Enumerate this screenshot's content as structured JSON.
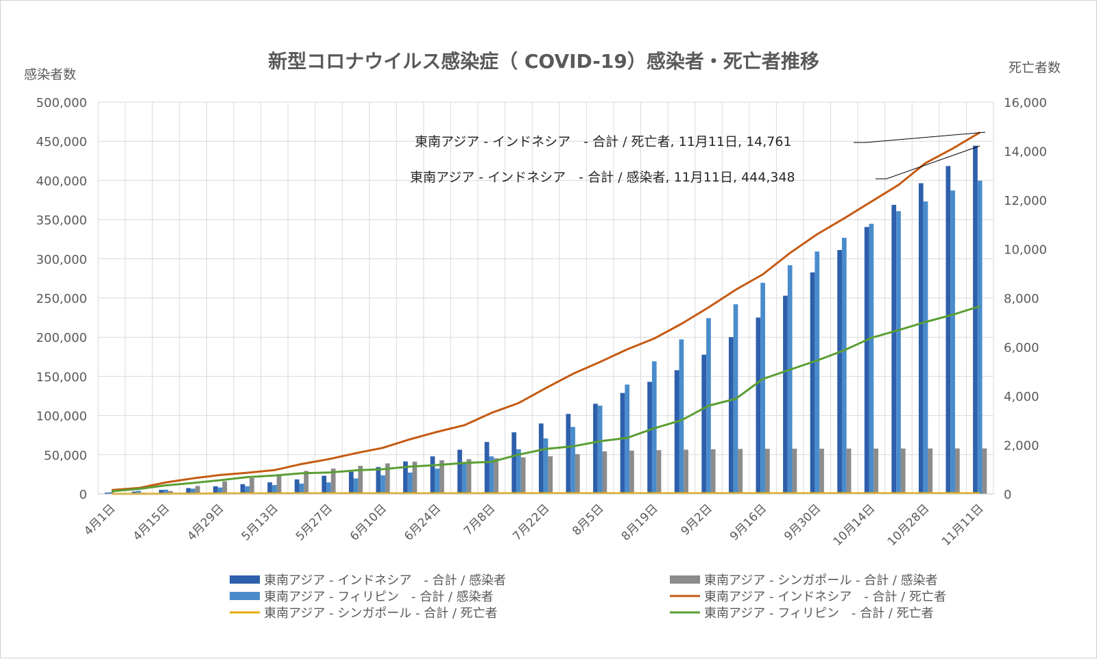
{
  "chart_data": {
    "type": "bar",
    "title": "新型コロナウイルス感染症（ COVID-19）感染者・死亡者推移",
    "ylabel": "感染者数",
    "y2label": "死亡者数",
    "ylim": [
      0,
      500000
    ],
    "y2lim": [
      0,
      16000
    ],
    "yticks": [
      "0",
      "50,000",
      "100,000",
      "150,000",
      "200,000",
      "250,000",
      "300,000",
      "350,000",
      "400,000",
      "450,000",
      "500,000"
    ],
    "y2ticks": [
      "0",
      "2,000",
      "4,000",
      "6,000",
      "8,000",
      "10,000",
      "12,000",
      "14,000",
      "16,000"
    ],
    "categories": [
      "4月1日",
      "4月8日",
      "4月15日",
      "4月22日",
      "4月29日",
      "5月6日",
      "5月13日",
      "5月20日",
      "5月27日",
      "6月3日",
      "6月10日",
      "6月17日",
      "6月24日",
      "7月1日",
      "7月8日",
      "7月15日",
      "7月22日",
      "7月29日",
      "8月5日",
      "8月12日",
      "8月19日",
      "8月26日",
      "9月2日",
      "9月9日",
      "9月16日",
      "9月23日",
      "9月30日",
      "10月7日",
      "10月14日",
      "10月21日",
      "10月28日",
      "11月4日",
      "11月11日"
    ],
    "x_tick_labels": [
      "4月1日",
      "4月15日",
      "4月29日",
      "5月13日",
      "5月27日",
      "6月10日",
      "6月24日",
      "7月8日",
      "7月22日",
      "8月5日",
      "8月19日",
      "9月2日",
      "9月16日",
      "9月30日",
      "10月14日",
      "10月28日",
      "11月11日"
    ],
    "grid": true,
    "legend_position": "bottom",
    "series": [
      {
        "name": "東南アジア - インドネシア　- 合計 / 感染者",
        "type": "bar",
        "axis": "left",
        "color": "#2e5faa",
        "values": [
          1677,
          2956,
          5136,
          7418,
          9771,
          12438,
          14749,
          18496,
          23165,
          28233,
          34316,
          41431,
          47896,
          56385,
          66226,
          78572,
          89869,
          102051,
          115056,
          128776,
          143043,
          157859,
          177571,
          200035,
          225030,
          252923,
          282724,
          311176,
          340622,
          368842,
          396454,
          418375,
          444348
        ]
      },
      {
        "name": "東南アジア - シンガポール - 合計 / 感染者",
        "type": "bar",
        "axis": "left",
        "color": "#8c8c8c",
        "values": [
          1000,
          1623,
          3699,
          10141,
          16169,
          20198,
          24671,
          29364,
          32343,
          35836,
          38965,
          41216,
          42955,
          44310,
          45423,
          46630,
          48035,
          50838,
          54254,
          55292,
          55838,
          56461,
          56948,
          57406,
          57558,
          57685,
          57765,
          57840,
          57901,
          57941,
          57980,
          58020,
          58064
        ]
      },
      {
        "name": "東南アジア - フィリピン　- 合計 / 感染者",
        "type": "bar",
        "axis": "left",
        "color": "#4a8ccb",
        "values": [
          2311,
          3870,
          5453,
          6710,
          8212,
          9823,
          11350,
          13221,
          14669,
          19748,
          23732,
          27238,
          32295,
          38511,
          47873,
          57006,
          70764,
          85486,
          112593,
          139538,
          169213,
          197164,
          224264,
          241987,
          269407,
          291789,
          309303,
          326833,
          344713,
          360775,
          373144,
          387161,
          399749
        ]
      },
      {
        "name": "東南アジア - インドネシア　- 合計 / 死亡者",
        "type": "line",
        "axis": "right",
        "color": "#c55a11",
        "values": [
          157,
          240,
          469,
          635,
          773,
          864,
          971,
          1221,
          1418,
          1663,
          1883,
          2231,
          2535,
          2805,
          3309,
          3710,
          4320,
          4901,
          5388,
          5903,
          6346,
          6944,
          7616,
          8336,
          8965,
          9837,
          10601,
          11253,
          11935,
          12617,
          13512,
          14104,
          14761
        ]
      },
      {
        "name": "東南アジア - シンガポール - 合計 / 死亡者",
        "type": "line",
        "axis": "right",
        "color": "#e6ac0c",
        "values": [
          3,
          5,
          8,
          11,
          18,
          20,
          21,
          23,
          23,
          24,
          25,
          26,
          26,
          26,
          26,
          27,
          27,
          27,
          27,
          27,
          27,
          27,
          27,
          27,
          27,
          27,
          27,
          27,
          28,
          28,
          28,
          28,
          28
        ]
      },
      {
        "name": "東南アジア - フィリピン　- 合計 / 死亡者",
        "type": "line",
        "axis": "right",
        "color": "#5a9e33",
        "values": [
          107,
          203,
          349,
          446,
          558,
          685,
          751,
          842,
          873,
          960,
          1011,
          1116,
          1177,
          1266,
          1309,
          1603,
          1835,
          1943,
          2150,
          2288,
          2681,
          3010,
          3601,
          3881,
          4692,
          5073,
          5448,
          5865,
          6372,
          6687,
          7021,
          7318,
          7661
        ]
      }
    ],
    "annotations": [
      {
        "text": "東南アジア - インドネシア　- 合計 / 死亡者, 11月11日, 14,761"
      },
      {
        "text": "東南アジア - インドネシア　- 合計 / 感染者, 11月11日, 444,348"
      }
    ]
  }
}
